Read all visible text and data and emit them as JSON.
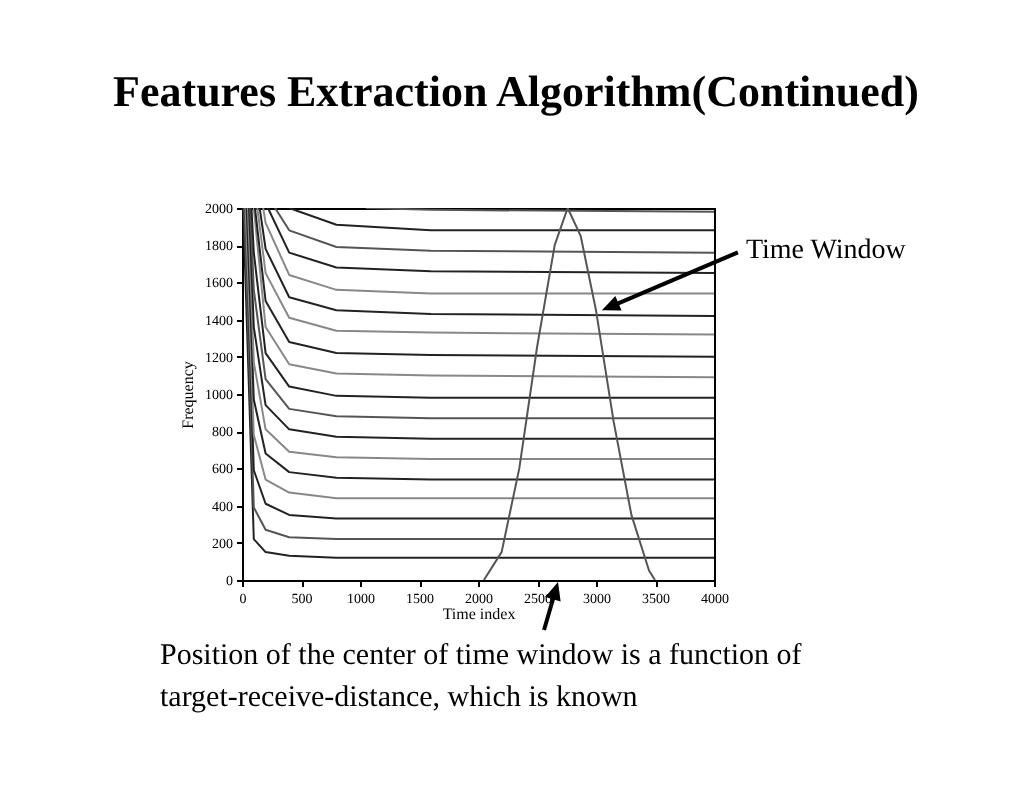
{
  "chart_data": {
    "type": "line",
    "title": "Features Extraction Algorithm(Continued)",
    "xlabel": "Time index",
    "ylabel": "Frequency",
    "xlim": [
      0,
      4000
    ],
    "ylim": [
      0,
      2000
    ],
    "xticks": [
      0,
      500,
      1000,
      1500,
      2000,
      2500,
      3000,
      3500,
      4000
    ],
    "yticks": [
      0,
      200,
      400,
      600,
      800,
      1000,
      1200,
      1400,
      1600,
      1800,
      2000
    ],
    "grid": false,
    "legend": false,
    "marker": "none",
    "line_style": "solid",
    "annotations": [
      {
        "text": "Time Window",
        "x": 3050,
        "y": 1450
      },
      "Position of the center of time window is a function of target-receive-distance, which is known"
    ],
    "series": [
      {
        "color": "#222222",
        "x": [
          10,
          100,
          200,
          400,
          800,
          1600,
          4000
        ],
        "values": [
          2000,
          220,
          150,
          130,
          120,
          120,
          120
        ]
      },
      {
        "color": "#555555",
        "x": [
          20,
          100,
          200,
          400,
          800,
          1600,
          4000
        ],
        "values": [
          2000,
          390,
          270,
          230,
          220,
          220,
          220
        ]
      },
      {
        "color": "#222222",
        "x": [
          30,
          100,
          200,
          400,
          800,
          1600,
          4000
        ],
        "values": [
          2000,
          590,
          410,
          350,
          330,
          330,
          330
        ]
      },
      {
        "color": "#888888",
        "x": [
          30,
          100,
          200,
          400,
          800,
          1600,
          4000
        ],
        "values": [
          2000,
          780,
          540,
          470,
          440,
          440,
          440
        ]
      },
      {
        "color": "#222222",
        "x": [
          40,
          100,
          200,
          400,
          800,
          1600,
          4000
        ],
        "values": [
          2000,
          970,
          680,
          580,
          550,
          540,
          540
        ]
      },
      {
        "color": "#888888",
        "x": [
          50,
          100,
          200,
          400,
          800,
          1600,
          4000
        ],
        "values": [
          2000,
          1170,
          810,
          690,
          660,
          650,
          650
        ]
      },
      {
        "color": "#222222",
        "x": [
          60,
          100,
          200,
          400,
          800,
          1600,
          4000
        ],
        "values": [
          2000,
          1360,
          940,
          810,
          770,
          760,
          760
        ]
      },
      {
        "color": "#555555",
        "x": [
          70,
          100,
          200,
          400,
          800,
          1600,
          4000
        ],
        "values": [
          2000,
          1560,
          1080,
          920,
          880,
          870,
          870
        ]
      },
      {
        "color": "#222222",
        "x": [
          80,
          100,
          200,
          400,
          800,
          1600,
          4000
        ],
        "values": [
          2000,
          1760,
          1220,
          1040,
          990,
          980,
          980
        ]
      },
      {
        "color": "#888888",
        "x": [
          100,
          200,
          400,
          800,
          1600,
          4000
        ],
        "values": [
          2000,
          1360,
          1160,
          1110,
          1100,
          1090
        ]
      },
      {
        "color": "#222222",
        "x": [
          110,
          200,
          400,
          800,
          1600,
          4000
        ],
        "values": [
          2000,
          1500,
          1280,
          1220,
          1210,
          1200
        ]
      },
      {
        "color": "#888888",
        "x": [
          130,
          200,
          400,
          800,
          1600,
          4000
        ],
        "values": [
          2000,
          1650,
          1410,
          1340,
          1330,
          1320
        ]
      },
      {
        "color": "#222222",
        "x": [
          150,
          200,
          400,
          800,
          1600,
          4000
        ],
        "values": [
          2000,
          1780,
          1520,
          1450,
          1430,
          1420
        ]
      },
      {
        "color": "#888888",
        "x": [
          180,
          200,
          400,
          800,
          1600,
          4000
        ],
        "values": [
          2000,
          1920,
          1640,
          1560,
          1540,
          1540
        ]
      },
      {
        "color": "#222222",
        "x": [
          220,
          400,
          800,
          1600,
          4000
        ],
        "values": [
          2000,
          1760,
          1680,
          1660,
          1650
        ]
      },
      {
        "color": "#555555",
        "x": [
          280,
          400,
          800,
          1600,
          4000
        ],
        "values": [
          2000,
          1880,
          1790,
          1770,
          1760
        ]
      },
      {
        "color": "#222222",
        "x": [
          400,
          800,
          1600,
          4000
        ],
        "values": [
          2000,
          1910,
          1880,
          1880
        ]
      },
      {
        "color": "#555555",
        "x": [
          1050,
          1600,
          4000
        ],
        "values": [
          2000,
          1990,
          1980
        ]
      },
      {
        "color": "#555555",
        "x": [
          2050,
          2200,
          2350,
          2500,
          2650,
          2760,
          2870,
          3000,
          3150,
          3300,
          3450,
          3500
        ],
        "values": [
          0,
          150,
          600,
          1250,
          1800,
          2000,
          1850,
          1450,
          850,
          350,
          50,
          0
        ]
      }
    ]
  }
}
